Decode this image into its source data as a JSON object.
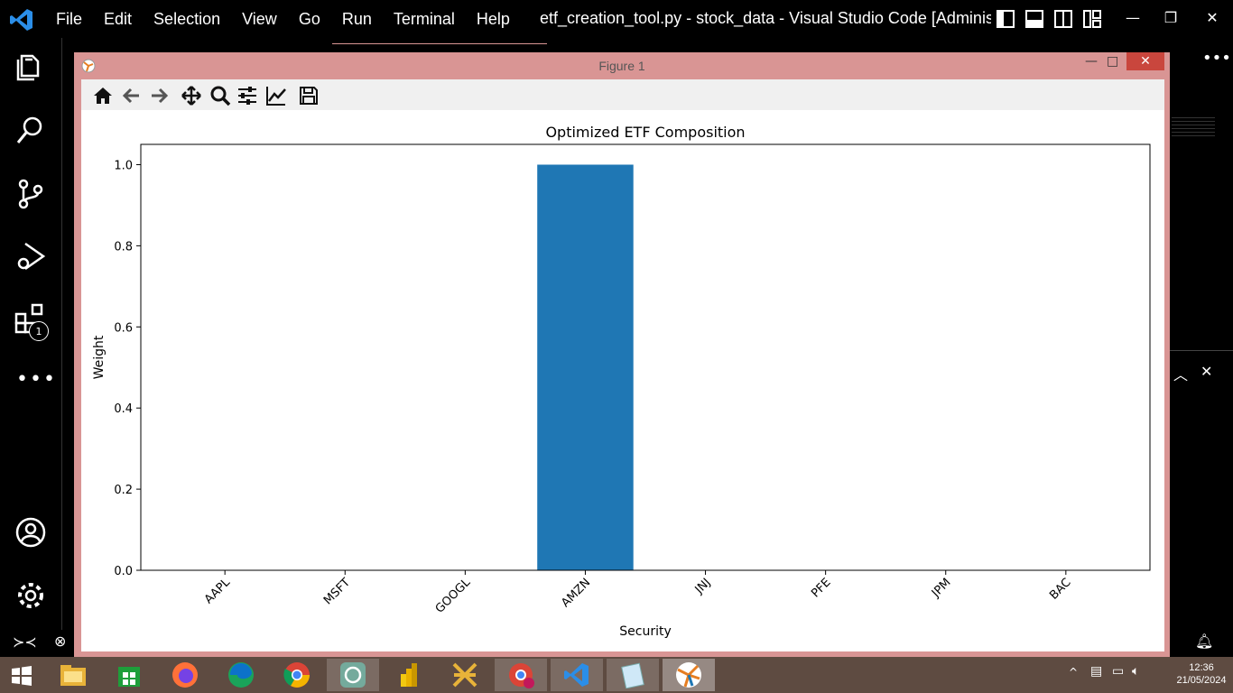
{
  "vscode": {
    "menu": [
      "File",
      "Edit",
      "Selection",
      "View",
      "Go",
      "Run",
      "Terminal",
      "Help"
    ],
    "window_title": "etf_creation_tool.py - stock_data - Visual Studio Code [Administ...",
    "extensions_badge": "1"
  },
  "figure": {
    "title": "Figure 1"
  },
  "chart_data": {
    "type": "bar",
    "title": "Optimized ETF Composition",
    "xlabel": "Security",
    "ylabel": "Weight",
    "categories": [
      "AAPL",
      "MSFT",
      "GOOGL",
      "AMZN",
      "JNJ",
      "PFE",
      "JPM",
      "BAC"
    ],
    "values": [
      0.0,
      0.0,
      0.0,
      1.0,
      0.0,
      0.0,
      0.0,
      0.0
    ],
    "ylim": [
      0,
      1.05
    ],
    "yticks": [
      "0.0",
      "0.2",
      "0.4",
      "0.6",
      "0.8",
      "1.0"
    ],
    "ytick_values": [
      0.0,
      0.2,
      0.4,
      0.6,
      0.8,
      1.0
    ],
    "bar_color": "#1f77b4",
    "grid": false,
    "xtick_rotation": 45
  },
  "taskbar": {
    "time": "12:36",
    "date": "21/05/2024"
  },
  "colors": {
    "figure_border": "#d99594",
    "taskbar": "#5e4b41"
  }
}
